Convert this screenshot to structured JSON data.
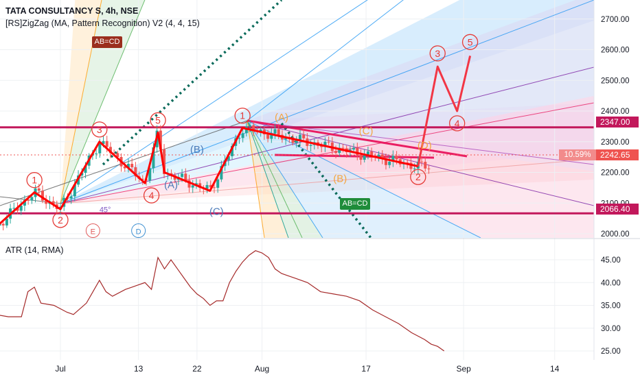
{
  "header": {
    "symbol_line": "TATA CONSULTANCY S, 4h, NSE",
    "indicator_line": "[RS]ZigZag (MA, Pattern Recognition) V2 (4, 4, 15)"
  },
  "atr": {
    "title": "ATR (14, RMA)"
  },
  "badges": {
    "top_left": "AB=CD",
    "bottom": "AB=CD"
  },
  "price_tags": {
    "upper_level": "2347.00",
    "current_price": "2242.65",
    "lower_level": "2066.40",
    "percent": "10.59%"
  },
  "colors": {
    "candle_up": "#26a69a",
    "candle_down": "#ef5350",
    "zigzag": "#ff0000",
    "level_line": "#c2185b",
    "projection": "#f23645",
    "current_tag": "#ef5350",
    "atr_line": "#a52a2a",
    "dotted_line": "#0b6b5b"
  },
  "chart_data": [
    {
      "type": "candlestick",
      "title": "TATA CONSULTANCY S, 4h, NSE",
      "x_axis": {
        "labels": [
          "Jul",
          "13",
          "22",
          "Aug",
          "17",
          "Sep",
          "14"
        ],
        "label_days": [
          0,
          12,
          21,
          31,
          47,
          62,
          76
        ]
      },
      "y_axis": {
        "ticks": [
          2000,
          2100,
          2200,
          2300,
          2400,
          2500,
          2600,
          2700
        ],
        "tick_labels": [
          "2000.00",
          "2100.00",
          "2200.00",
          "2300.00",
          "2400.00",
          "2500.00",
          "2600.00",
          "2700.00"
        ]
      },
      "horizontal_levels": [
        2347.0,
        2066.4
      ],
      "last_price": 2242.65,
      "zigzag_points": [
        {
          "day": -10,
          "price": 2020
        },
        {
          "day": -4,
          "price": 2135
        },
        {
          "day": 0,
          "price": 2080
        },
        {
          "day": 6,
          "price": 2300
        },
        {
          "day": 13,
          "price": 2165
        },
        {
          "day": 15,
          "price": 2330
        },
        {
          "day": 16,
          "price": 2200
        },
        {
          "day": 23,
          "price": 2140
        },
        {
          "day": 28,
          "price": 2345
        },
        {
          "day": 55,
          "price": 2220
        }
      ],
      "projection": [
        {
          "day": 55,
          "price": 2220
        },
        {
          "day": 58,
          "price": 2545
        },
        {
          "day": 61,
          "price": 2400
        },
        {
          "day": 63,
          "price": 2580
        }
      ],
      "wave_labels_red": [
        {
          "text": "1",
          "day": -4,
          "price": 2175
        },
        {
          "text": "2",
          "day": 0,
          "price": 2045
        },
        {
          "text": "3",
          "day": 6,
          "price": 2340
        },
        {
          "text": "4",
          "day": 14,
          "price": 2125
        },
        {
          "text": "5",
          "day": 15,
          "price": 2370
        },
        {
          "text": "1",
          "day": 28,
          "price": 2385
        },
        {
          "text": "2",
          "day": 55,
          "price": 2185
        },
        {
          "text": "3",
          "day": 58,
          "price": 2588
        },
        {
          "text": "4",
          "day": 61,
          "price": 2360
        },
        {
          "text": "5",
          "day": 63,
          "price": 2625
        }
      ],
      "pattern_labels": [
        {
          "text": "(B)",
          "day": 21,
          "price": 2275,
          "color": "#4a7ab8"
        },
        {
          "text": "(A)",
          "day": 17,
          "price": 2160,
          "color": "#4a7ab8"
        },
        {
          "text": "(C)",
          "day": 24,
          "price": 2073,
          "color": "#4a7ab8"
        },
        {
          "text": "(A)",
          "day": 34,
          "price": 2380,
          "color": "#f4a542"
        },
        {
          "text": "(C)",
          "day": 47,
          "price": 2335,
          "color": "#f4a542"
        },
        {
          "text": "(B)",
          "day": 43,
          "price": 2180,
          "color": "#f4a542"
        },
        {
          "text": "(D)",
          "day": 56,
          "price": 2288,
          "color": "#f4a542"
        },
        {
          "text": "E",
          "day": 5,
          "price": 2010,
          "color": "#e05a5a"
        },
        {
          "text": "D",
          "day": 12,
          "price": 2010,
          "color": "#3d8fd1"
        }
      ],
      "angle_label": {
        "text": "45°",
        "day": 6,
        "price": 2070
      }
    },
    {
      "type": "line",
      "title": "ATR (14, RMA)",
      "y_axis": {
        "ticks": [
          25,
          30,
          35,
          40,
          45
        ],
        "tick_labels": [
          "25.00",
          "30.00",
          "35.00",
          "40.00",
          "45.00"
        ]
      },
      "series": [
        {
          "name": "ATR",
          "points": [
            [
              -12,
              34.0
            ],
            [
              -10,
              33.0
            ],
            [
              -8,
              32.5
            ],
            [
              -6,
              32.5
            ],
            [
              -5,
              38.0
            ],
            [
              -4,
              39.0
            ],
            [
              -3,
              35.5
            ],
            [
              -1,
              35.0
            ],
            [
              1,
              33.5
            ],
            [
              2,
              33.0
            ],
            [
              4,
              35.5
            ],
            [
              5,
              38.0
            ],
            [
              6,
              40.5
            ],
            [
              7,
              38.0
            ],
            [
              8,
              37.0
            ],
            [
              10,
              38.5
            ],
            [
              11,
              39.0
            ],
            [
              12,
              39.5
            ],
            [
              13,
              40.0
            ],
            [
              14,
              38.5
            ],
            [
              15,
              45.5
            ],
            [
              16,
              43.0
            ],
            [
              17,
              45.0
            ],
            [
              18,
              43.0
            ],
            [
              19,
              41.0
            ],
            [
              20,
              39.0
            ],
            [
              21,
              37.5
            ],
            [
              22,
              36.5
            ],
            [
              23,
              35.0
            ],
            [
              24,
              36.0
            ],
            [
              25,
              36.0
            ],
            [
              26,
              40.0
            ],
            [
              27,
              42.5
            ],
            [
              28,
              44.5
            ],
            [
              29,
              46.0
            ],
            [
              30,
              47.0
            ],
            [
              31,
              46.5
            ],
            [
              32,
              45.5
            ],
            [
              33,
              43.0
            ],
            [
              34,
              42.0
            ],
            [
              35,
              41.5
            ],
            [
              36,
              41.0
            ],
            [
              38,
              40.0
            ],
            [
              40,
              38.0
            ],
            [
              42,
              37.5
            ],
            [
              44,
              37.0
            ],
            [
              46,
              36.0
            ],
            [
              48,
              34.0
            ],
            [
              50,
              32.5
            ],
            [
              52,
              31.0
            ],
            [
              54,
              29.0
            ],
            [
              56,
              27.5
            ],
            [
              57,
              26.5
            ],
            [
              58,
              26.0
            ],
            [
              59,
              25.0
            ]
          ]
        }
      ],
      "ylim": [
        23,
        49
      ]
    }
  ]
}
